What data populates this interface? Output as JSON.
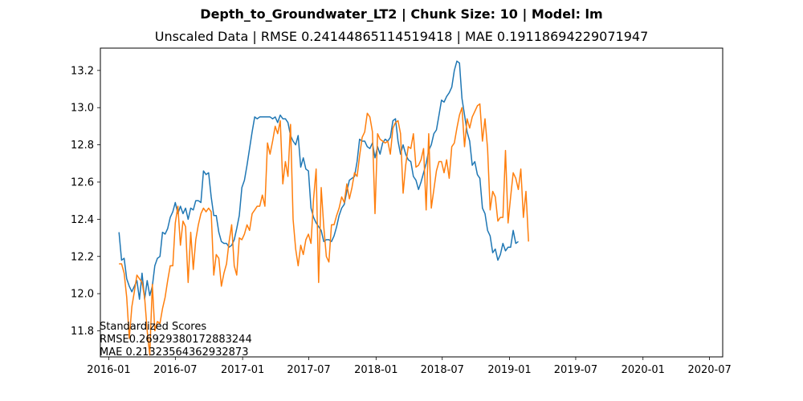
{
  "title": "Depth_to_Groundwater_LT2 | Chunk Size: 10 | Model: lm",
  "subtitle": "Unscaled Data | RMSE 0.24144865114519418 | MAE 0.19118694229071947",
  "annotation": {
    "line1": "Standardized Scores",
    "line2": "RMSE0.26929380172883244",
    "line3": "MAE 0.21323564362932873"
  },
  "colors": {
    "series_actual": "#1f77b4",
    "series_predicted": "#ff7f0e"
  },
  "chart_data": {
    "type": "line",
    "title": "Depth_to_Groundwater_LT2 | Chunk Size: 10 | Model: lm",
    "subtitle": "Unscaled Data | RMSE 0.24144865114519418 | MAE 0.19118694229071947",
    "xlabel": "",
    "ylabel": "",
    "xlim": [
      "2015-12-09",
      "2020-08-06"
    ],
    "ylim": [
      11.66,
      13.32
    ],
    "grid": false,
    "legend": "none",
    "x_ticks": [
      "2016-01",
      "2016-07",
      "2017-01",
      "2017-07",
      "2018-01",
      "2018-07",
      "2019-01",
      "2019-07",
      "2020-01",
      "2020-07"
    ],
    "y_ticks": [
      "11.8",
      "12.0",
      "12.2",
      "12.4",
      "12.6",
      "12.8",
      "13.0",
      "13.2"
    ],
    "x_start": "2016-01-29",
    "x_step_days": 7,
    "series": [
      {
        "values": [
          12.33,
          12.18,
          12.19,
          12.08,
          12.04,
          12.01,
          12.04,
          12.07,
          11.97,
          12.11,
          11.97,
          12.07,
          11.99,
          12.04,
          12.15,
          12.19,
          12.2,
          12.33,
          12.32,
          12.35,
          12.41,
          12.44,
          12.49,
          12.43,
          12.47,
          12.43,
          12.46,
          12.4,
          12.46,
          12.45,
          12.5,
          12.5,
          12.49,
          12.66,
          12.64,
          12.65,
          12.52,
          12.42,
          12.42,
          12.33,
          12.28,
          12.27,
          12.27,
          12.25,
          12.26,
          12.29,
          12.35,
          12.42,
          12.57,
          12.61,
          12.69,
          12.78,
          12.87,
          12.95,
          12.94,
          12.95,
          12.95,
          12.95,
          12.95,
          12.95,
          12.94,
          12.95,
          12.92,
          12.96,
          12.94,
          12.94,
          12.92,
          12.85,
          12.82,
          12.8,
          12.85,
          12.68,
          12.73,
          12.67,
          12.66,
          12.46,
          12.41,
          12.38,
          12.36,
          12.34,
          12.28,
          12.29,
          12.29,
          12.28,
          12.31,
          12.36,
          12.42,
          12.46,
          12.48,
          12.55,
          12.61,
          12.62,
          12.63,
          12.71,
          12.83,
          12.82,
          12.82,
          12.79,
          12.78,
          12.81,
          12.73,
          12.79,
          12.75,
          12.81,
          12.83,
          12.82,
          12.84,
          12.93,
          12.94,
          12.82,
          12.75,
          12.8,
          12.75,
          12.72,
          12.71,
          12.63,
          12.61,
          12.56,
          12.6,
          12.65,
          12.7,
          12.77,
          12.8,
          12.86,
          12.88,
          12.96,
          13.04,
          13.03,
          13.06,
          13.08,
          13.11,
          13.2,
          13.25,
          13.24,
          13.05,
          12.96,
          12.87,
          12.82,
          12.69,
          12.71,
          12.64,
          12.62,
          12.46,
          12.43,
          12.34,
          12.31,
          12.22,
          12.24,
          12.18,
          12.21,
          12.27,
          12.23,
          12.25,
          12.25,
          12.34,
          12.27,
          12.28
        ]
      },
      {
        "values": [
          12.16,
          12.16,
          12.11,
          11.98,
          11.76,
          11.93,
          12.01,
          12.1,
          12.08,
          12.06,
          11.98,
          11.8,
          11.67,
          12.05,
          11.8,
          11.85,
          11.84,
          11.92,
          11.98,
          12.07,
          12.15,
          12.15,
          12.38,
          12.47,
          12.26,
          12.39,
          12.36,
          12.06,
          12.33,
          12.13,
          12.29,
          12.37,
          12.43,
          12.46,
          12.44,
          12.46,
          12.44,
          12.1,
          12.21,
          12.19,
          12.04,
          12.11,
          12.16,
          12.28,
          12.37,
          12.15,
          12.1,
          12.3,
          12.29,
          12.32,
          12.37,
          12.34,
          12.43,
          12.45,
          12.47,
          12.47,
          12.53,
          12.47,
          12.81,
          12.75,
          12.82,
          12.9,
          12.86,
          12.93,
          12.59,
          12.71,
          12.63,
          12.91,
          12.4,
          12.24,
          12.15,
          12.26,
          12.21,
          12.29,
          12.32,
          12.27,
          12.51,
          12.67,
          12.06,
          12.57,
          12.36,
          12.2,
          12.17,
          12.37,
          12.37,
          12.42,
          12.46,
          12.52,
          12.49,
          12.59,
          12.51,
          12.57,
          12.65,
          12.63,
          12.74,
          12.84,
          12.87,
          12.97,
          12.95,
          12.87,
          12.43,
          12.86,
          12.83,
          12.82,
          12.81,
          12.82,
          12.75,
          12.89,
          12.92,
          12.93,
          12.86,
          12.54,
          12.69,
          12.79,
          12.78,
          12.86,
          12.68,
          12.69,
          12.72,
          12.78,
          12.45,
          12.86,
          12.46,
          12.56,
          12.66,
          12.71,
          12.71,
          12.65,
          12.72,
          12.62,
          12.79,
          12.81,
          12.89,
          12.96,
          13.0,
          12.79,
          12.94,
          12.89,
          12.95,
          12.98,
          13.01,
          13.02,
          12.82,
          12.94,
          12.78,
          12.45,
          12.55,
          12.52,
          12.39,
          12.41,
          12.41,
          12.77,
          12.38,
          12.52,
          12.65,
          12.62,
          12.56,
          12.67,
          12.41,
          12.55,
          12.28
        ]
      }
    ]
  }
}
